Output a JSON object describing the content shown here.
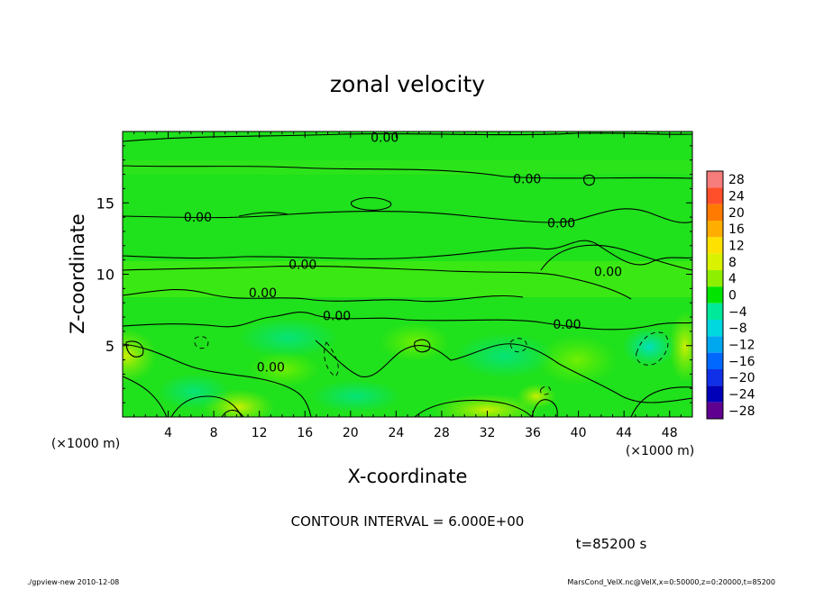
{
  "chart_data": {
    "type": "heatmap",
    "title": "zonal velocity",
    "xlabel": "X-coordinate",
    "ylabel": "Z-coordinate",
    "x_unit_label": "(×1000 m)",
    "z_unit_label": "(×1000 m)",
    "xlim": [
      0,
      50
    ],
    "ylim": [
      0,
      20
    ],
    "x_ticks": [
      4,
      8,
      12,
      16,
      20,
      24,
      28,
      32,
      36,
      40,
      44,
      48
    ],
    "y_ticks": [
      5,
      10,
      15
    ],
    "contour_label": "0.00",
    "contour_labels": [
      {
        "x": 23.0,
        "y": 19.6
      },
      {
        "x": 35.5,
        "y": 16.7
      },
      {
        "x": 6.6,
        "y": 14.0
      },
      {
        "x": 38.5,
        "y": 13.6
      },
      {
        "x": 15.8,
        "y": 10.7
      },
      {
        "x": 42.6,
        "y": 10.2
      },
      {
        "x": 12.3,
        "y": 8.7
      },
      {
        "x": 18.8,
        "y": 7.1
      },
      {
        "x": 39.0,
        "y": 6.5
      },
      {
        "x": 13.0,
        "y": 3.5
      }
    ],
    "colorbar": {
      "levels": [
        28,
        24,
        20,
        16,
        12,
        8,
        4,
        0,
        -4,
        -8,
        -12,
        -16,
        -20,
        -24,
        -28
      ],
      "tick_labels": [
        "28",
        "24",
        "20",
        "16",
        "12",
        "8",
        "4",
        "0",
        "−4",
        "−8",
        "−12",
        "−16",
        "−20",
        "−24",
        "−28"
      ],
      "colors": [
        "#f77c7c",
        "#ff4f2a",
        "#ff7a00",
        "#ffae00",
        "#ffe100",
        "#d8f200",
        "#8ef000",
        "#00e400",
        "#00e89a",
        "#00d8e0",
        "#00a8f0",
        "#0068ff",
        "#1030e8",
        "#0000b8",
        "#600090"
      ]
    },
    "contour_interval_label": "CONTOUR INTERVAL = 6.000E+00",
    "time_label": "t=85200 s",
    "background_color": "#1fe11c"
  },
  "footer": {
    "left": "./gpview-new   2010-12-08",
    "right": "MarsCond_VelX.nc@VelX,x=0:50000,z=0:20000,t=85200"
  }
}
